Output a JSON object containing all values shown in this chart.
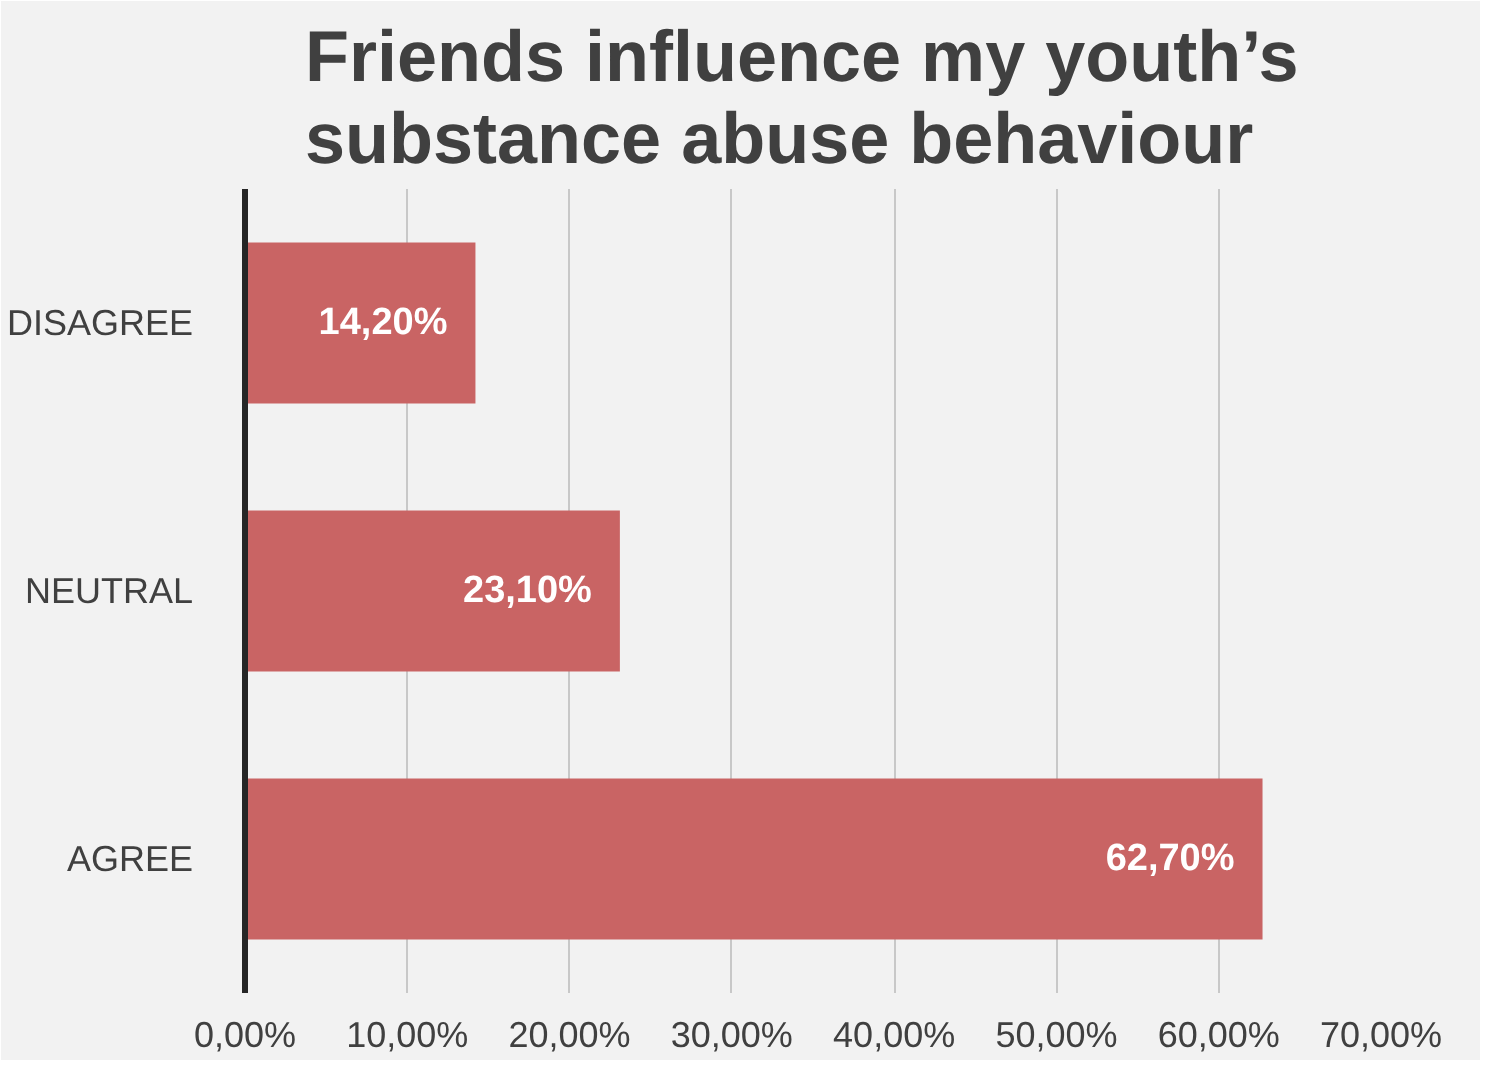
{
  "chart_data": {
    "type": "bar",
    "orientation": "horizontal",
    "title": "Friends influence my youth’s\nsubstance abuse behaviour",
    "categories": [
      "DISAGREE",
      "NEUTRAL",
      "AGREE"
    ],
    "values": [
      14.2,
      23.1,
      62.7
    ],
    "value_labels": [
      "14,20%",
      "23,10%",
      "62,70%"
    ],
    "color": "#c96464",
    "xlim": [
      0,
      70
    ],
    "xticks": [
      {
        "value": 0,
        "label": "0,00%"
      },
      {
        "value": 10,
        "label": "10,00%"
      },
      {
        "value": 20,
        "label": "20,00%"
      },
      {
        "value": 30,
        "label": "30,00%"
      },
      {
        "value": 40,
        "label": "40,00%"
      },
      {
        "value": 50,
        "label": "50,00%"
      },
      {
        "value": 60,
        "label": "60,00%"
      },
      {
        "value": 70,
        "label": "70,00%"
      }
    ],
    "grid": "x"
  }
}
